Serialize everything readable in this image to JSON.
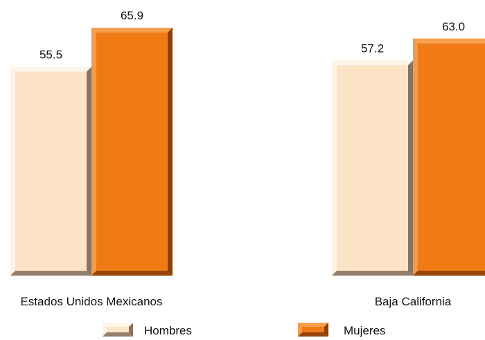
{
  "chart_data": {
    "type": "bar",
    "categories": [
      "Estados Unidos Mexicanos",
      "Baja California"
    ],
    "series": [
      {
        "name": "Hombres",
        "values": [
          55.5,
          57.2
        ]
      },
      {
        "name": "Mujeres",
        "values": [
          65.9,
          63.0
        ]
      }
    ],
    "data_labels": [
      [
        "55.5",
        "57.2"
      ],
      [
        "65.9",
        "63.0"
      ]
    ],
    "title": "",
    "xlabel": "",
    "ylabel": "",
    "ylim": [
      0,
      65.9
    ],
    "grid": false,
    "legend_position": "bottom",
    "colors": {
      "Hombres": {
        "face": "#fde3c6",
        "light": "#fff6ea",
        "dark": "#8a7361"
      },
      "Mujeres": {
        "face": "#f07a14",
        "light": "#f6a050",
        "dark": "#8a3f05"
      }
    }
  }
}
